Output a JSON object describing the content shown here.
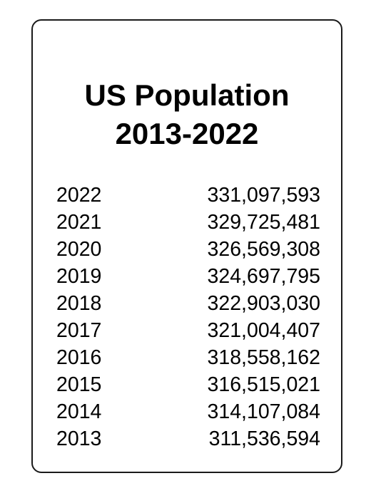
{
  "title": {
    "line1": "US Population",
    "line2": "2013-2022"
  },
  "rows": [
    {
      "year": "2022",
      "population": "331,097,593"
    },
    {
      "year": "2021",
      "population": "329,725,481"
    },
    {
      "year": "2020",
      "population": "326,569,308"
    },
    {
      "year": "2019",
      "population": "324,697,795"
    },
    {
      "year": "2018",
      "population": "322,903,030"
    },
    {
      "year": "2017",
      "population": "321,004,407"
    },
    {
      "year": "2016",
      "population": "318,558,162"
    },
    {
      "year": "2015",
      "population": "316,515,021"
    },
    {
      "year": "2014",
      "population": "314,107,084"
    },
    {
      "year": "2013",
      "population": "311,536,594"
    }
  ]
}
